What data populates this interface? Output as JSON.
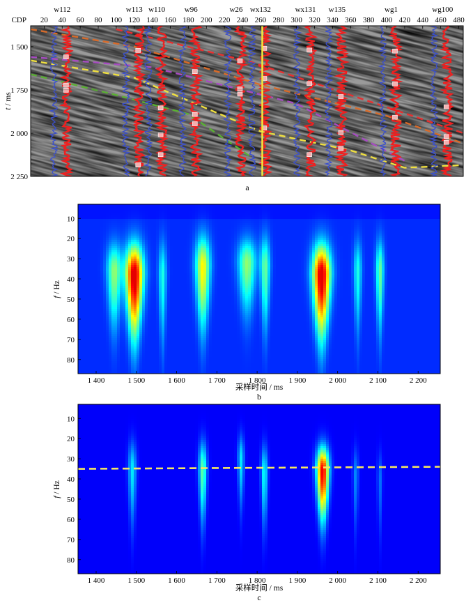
{
  "chart_data": [
    {
      "id": "a",
      "type": "seismic-section",
      "caption": "a",
      "top_axis_prefix": "CDP",
      "cdp_ticks": [
        20,
        40,
        60,
        80,
        100,
        120,
        140,
        160,
        180,
        200,
        220,
        240,
        260,
        280,
        300,
        320,
        340,
        360,
        380,
        400,
        420,
        440,
        460,
        480
      ],
      "cdp_range": [
        5,
        485
      ],
      "time_ticks": [
        1500,
        1750,
        2000,
        2250
      ],
      "time_tick_labels": [
        "1 500",
        "1 750",
        "2 000",
        "2 250"
      ],
      "time_range": [
        1380,
        2250
      ],
      "ylabel_italic": "t",
      "ylabel_unit": " / ms",
      "wells": [
        {
          "name": "w112",
          "cdp": 40
        },
        {
          "name": "w113",
          "cdp": 120
        },
        {
          "name": "w110",
          "cdp": 145
        },
        {
          "name": "w96",
          "cdp": 183
        },
        {
          "name": "w26",
          "cdp": 233
        },
        {
          "name": "wx132",
          "cdp": 260
        },
        {
          "name": "wx131",
          "cdp": 310
        },
        {
          "name": "w135",
          "cdp": 345
        },
        {
          "name": "wg1",
          "cdp": 405
        },
        {
          "name": "wg100",
          "cdp": 462
        }
      ],
      "highlight_trace_cdp": 262,
      "highlight_color": "#f4ea3c",
      "horizons": [
        {
          "color": "#f0e040",
          "points": [
            [
              5,
              1580
            ],
            [
              120,
              1680
            ],
            [
              260,
              1990
            ],
            [
              360,
              2100
            ],
            [
              420,
              2200
            ],
            [
              485,
              2185
            ]
          ]
        },
        {
          "color": "#5ab033",
          "points": [
            [
              5,
              1660
            ],
            [
              100,
              1780
            ],
            [
              180,
              1890
            ],
            [
              250,
              2140
            ]
          ]
        },
        {
          "color": "#d86b2a",
          "points": [
            [
              5,
              1400
            ],
            [
              120,
              1500
            ],
            [
              260,
              1720
            ],
            [
              400,
              1900
            ],
            [
              485,
              2060
            ]
          ]
        },
        {
          "color": "#a74cc2",
          "points": [
            [
              5,
              1560
            ],
            [
              140,
              1620
            ],
            [
              300,
              1830
            ],
            [
              420,
              2160
            ]
          ]
        },
        {
          "color": "#e83030",
          "points": [
            [
              100,
              1400
            ],
            [
              250,
              1590
            ],
            [
              400,
              1850
            ],
            [
              485,
              2000
            ]
          ]
        }
      ]
    },
    {
      "id": "b",
      "type": "heatmap",
      "caption": "b",
      "xlabel": "采样时间 / ms",
      "ylabel_italic": "f",
      "ylabel_unit": " / Hz",
      "x_ticks": [
        1400,
        1500,
        1600,
        1700,
        1800,
        1900,
        2000,
        2100,
        2200
      ],
      "x_tick_labels": [
        "1 400",
        "1 500",
        "1 600",
        "1 700",
        "1 800",
        "1 900",
        "2 000",
        "2 100",
        "2 200"
      ],
      "y_ticks": [
        10,
        20,
        30,
        40,
        50,
        60,
        70,
        80
      ],
      "xlim": [
        1355,
        2255
      ],
      "ylim": [
        3,
        87
      ],
      "colormap": "jet",
      "peaks": [
        {
          "time": 1495,
          "freq": 38,
          "amplitude": 1.0,
          "t_width": 22,
          "f_width": 18
        },
        {
          "time": 1445,
          "freq": 36,
          "amplitude": 0.45,
          "t_width": 18,
          "f_width": 16
        },
        {
          "time": 1565,
          "freq": 38,
          "amplitude": 0.3,
          "t_width": 10,
          "f_width": 20
        },
        {
          "time": 1665,
          "freq": 34,
          "amplitude": 0.6,
          "t_width": 18,
          "f_width": 18
        },
        {
          "time": 1775,
          "freq": 32,
          "amplitude": 0.45,
          "t_width": 22,
          "f_width": 14
        },
        {
          "time": 1820,
          "freq": 34,
          "amplitude": 0.4,
          "t_width": 12,
          "f_width": 18
        },
        {
          "time": 1960,
          "freq": 38,
          "amplitude": 1.0,
          "t_width": 22,
          "f_width": 18
        },
        {
          "time": 2050,
          "freq": 36,
          "amplitude": 0.3,
          "t_width": 10,
          "f_width": 18
        },
        {
          "time": 2105,
          "freq": 36,
          "amplitude": 0.4,
          "t_width": 10,
          "f_width": 18
        }
      ]
    },
    {
      "id": "c",
      "type": "heatmap",
      "caption": "c",
      "xlabel": "采样时间 / ms",
      "ylabel_italic": "f",
      "ylabel_unit": " / Hz",
      "x_ticks": [
        1400,
        1500,
        1600,
        1700,
        1800,
        1900,
        2000,
        2100,
        2200
      ],
      "x_tick_labels": [
        "1 400",
        "1 500",
        "1 600",
        "1 700",
        "1 800",
        "1 900",
        "2 000",
        "2 100",
        "2 200"
      ],
      "y_ticks": [
        10,
        20,
        30,
        40,
        50,
        60,
        70,
        80
      ],
      "xlim": [
        1355,
        2255
      ],
      "ylim": [
        3,
        87
      ],
      "colormap": "jet",
      "reference_line_freq": 35,
      "reference_line_color": "#f5e663",
      "peaks": [
        {
          "time": 1490,
          "freq": 35,
          "amplitude": 0.3,
          "t_width": 10,
          "f_width": 16
        },
        {
          "time": 1665,
          "freq": 35,
          "amplitude": 0.45,
          "t_width": 10,
          "f_width": 16
        },
        {
          "time": 1760,
          "freq": 30,
          "amplitude": 0.3,
          "t_width": 8,
          "f_width": 14
        },
        {
          "time": 1818,
          "freq": 37,
          "amplitude": 0.35,
          "t_width": 8,
          "f_width": 16
        },
        {
          "time": 1963,
          "freq": 36,
          "amplitude": 1.0,
          "t_width": 15,
          "f_width": 14
        },
        {
          "time": 2045,
          "freq": 38,
          "amplitude": 0.18,
          "t_width": 7,
          "f_width": 16
        },
        {
          "time": 2105,
          "freq": 40,
          "amplitude": 0.15,
          "t_width": 6,
          "f_width": 16
        }
      ]
    }
  ]
}
